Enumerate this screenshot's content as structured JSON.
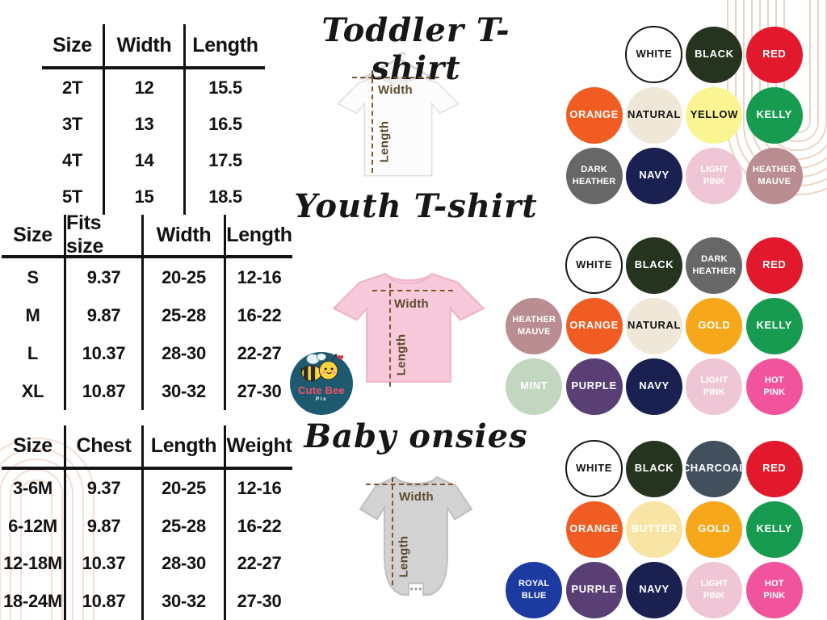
{
  "brand": {
    "name": "Cute Bee",
    "sub": "Pix"
  },
  "decor": {
    "arch_color_top_right": "#e9d6c6",
    "arch_color_bottom_left": "#f3ded6",
    "measure_line_color": "#7d5733"
  },
  "sections": [
    {
      "key": "toddler",
      "title": "Toddler T-shirt",
      "measure": {
        "width": "Width",
        "length": "Length"
      },
      "table": {
        "headers": [
          "Size",
          "Width",
          "Length"
        ],
        "rows": [
          [
            "2T",
            "12",
            "15.5"
          ],
          [
            "3T",
            "13",
            "16.5"
          ],
          [
            "4T",
            "14",
            "17.5"
          ],
          [
            "5T",
            "15",
            "18.5"
          ]
        ]
      },
      "swatch_rows": [
        [
          {
            "label": "WHITE",
            "hex": "#ffffff",
            "text": "#131313",
            "outline": true,
            "col": 3
          },
          {
            "label": "BLACK",
            "hex": "#26331e",
            "text": "#ffffff",
            "col": 4
          },
          {
            "label": "RED",
            "hex": "#e2192c",
            "text": "#ffffff",
            "col": 5
          }
        ],
        [
          {
            "label": "ORANGE",
            "hex": "#f15c22",
            "text": "#ffffff",
            "col": 2
          },
          {
            "label": "NATURAL",
            "hex": "#efe8d8",
            "text": "#131313",
            "col": 3
          },
          {
            "label": "YELLOW",
            "hex": "#fbf492",
            "text": "#131313",
            "col": 4
          },
          {
            "label": "KELLY",
            "hex": "#179b51",
            "text": "#ffffff",
            "col": 5
          }
        ],
        [
          {
            "label": "DARK HEATHER",
            "hex": "#676767",
            "text": "#ffffff",
            "col": 2
          },
          {
            "label": "NAVY",
            "hex": "#1a2150",
            "text": "#ffffff",
            "col": 3
          },
          {
            "label": "LIGHT PINK",
            "hex": "#efc6d5",
            "text": "#ffffff",
            "col": 4
          },
          {
            "label": "HEATHER MAUVE",
            "hex": "#b98d92",
            "text": "#ffffff",
            "col": 5
          }
        ]
      ]
    },
    {
      "key": "youth",
      "title": "Youth T-shirt",
      "measure": {
        "width": "Width",
        "length": "Length"
      },
      "table": {
        "headers": [
          "Size",
          "Fits size",
          "Width",
          "Length"
        ],
        "rows": [
          [
            "S",
            "9.37",
            "20-25",
            "12-16"
          ],
          [
            "M",
            "9.87",
            "25-28",
            "16-22"
          ],
          [
            "L",
            "10.37",
            "28-30",
            "22-27"
          ],
          [
            "XL",
            "10.87",
            "30-32",
            "27-30"
          ]
        ]
      },
      "swatch_rows": [
        [
          {
            "label": "WHITE",
            "hex": "#ffffff",
            "text": "#131313",
            "outline": true,
            "col": 2
          },
          {
            "label": "BLACK",
            "hex": "#26331e",
            "text": "#ffffff",
            "col": 3
          },
          {
            "label": "DARK HEATHER",
            "hex": "#676767",
            "text": "#ffffff",
            "col": 4
          },
          {
            "label": "RED",
            "hex": "#e2192c",
            "text": "#ffffff",
            "col": 5
          }
        ],
        [
          {
            "label": "HEATHER MAUVE",
            "hex": "#b98d92",
            "text": "#ffffff",
            "col": 1
          },
          {
            "label": "ORANGE",
            "hex": "#f15c22",
            "text": "#ffffff",
            "col": 2
          },
          {
            "label": "NATURAL",
            "hex": "#efe8d8",
            "text": "#131313",
            "col": 3
          },
          {
            "label": "GOLD",
            "hex": "#f6a81a",
            "text": "#ffffff",
            "col": 4
          },
          {
            "label": "KELLY",
            "hex": "#179b51",
            "text": "#ffffff",
            "col": 5
          }
        ],
        [
          {
            "label": "MINT",
            "hex": "#c3d6c0",
            "text": "#ffffff",
            "col": 1
          },
          {
            "label": "PURPLE",
            "hex": "#5a3f75",
            "text": "#ffffff",
            "col": 2
          },
          {
            "label": "NAVY",
            "hex": "#1a2150",
            "text": "#ffffff",
            "col": 3
          },
          {
            "label": "LIGHT PINK",
            "hex": "#efc6d5",
            "text": "#ffffff",
            "col": 4
          },
          {
            "label": "HOT PINK",
            "hex": "#f1549c",
            "text": "#ffffff",
            "col": 5
          }
        ]
      ]
    },
    {
      "key": "baby",
      "title": "Baby onsies",
      "measure": {
        "width": "Width",
        "length": "Length"
      },
      "table": {
        "headers": [
          "Size",
          "Chest",
          "Length",
          "Weight"
        ],
        "rows": [
          [
            "3-6M",
            "9.37",
            "20-25",
            "12-16"
          ],
          [
            "6-12M",
            "9.87",
            "25-28",
            "16-22"
          ],
          [
            "12-18M",
            "10.37",
            "28-30",
            "22-27"
          ],
          [
            "18-24M",
            "10.87",
            "30-32",
            "27-30"
          ]
        ]
      },
      "swatch_rows": [
        [
          {
            "label": "WHITE",
            "hex": "#ffffff",
            "text": "#131313",
            "outline": true,
            "col": 2
          },
          {
            "label": "BLACK",
            "hex": "#26331e",
            "text": "#ffffff",
            "col": 3
          },
          {
            "label": "CHARCOAL",
            "hex": "#41505c",
            "text": "#ffffff",
            "col": 4
          },
          {
            "label": "RED",
            "hex": "#e2192c",
            "text": "#ffffff",
            "col": 5
          }
        ],
        [
          {
            "label": "ORANGE",
            "hex": "#f15c22",
            "text": "#ffffff",
            "col": 2
          },
          {
            "label": "BUTTER",
            "hex": "#f8e5a6",
            "text": "#ffffff",
            "col": 3
          },
          {
            "label": "GOLD",
            "hex": "#f6a81a",
            "text": "#ffffff",
            "col": 4
          },
          {
            "label": "KELLY",
            "hex": "#179b51",
            "text": "#ffffff",
            "col": 5
          }
        ],
        [
          {
            "label": "ROYAL BLUE",
            "hex": "#1c3aa0",
            "text": "#ffffff",
            "col": 1
          },
          {
            "label": "PURPLE",
            "hex": "#5a3f75",
            "text": "#ffffff",
            "col": 2
          },
          {
            "label": "NAVY",
            "hex": "#1a2150",
            "text": "#ffffff",
            "col": 3
          },
          {
            "label": "LIGHT PINK",
            "hex": "#efc6d5",
            "text": "#ffffff",
            "col": 4
          },
          {
            "label": "HOT PINK",
            "hex": "#f1549c",
            "text": "#ffffff",
            "col": 5
          }
        ]
      ]
    }
  ]
}
